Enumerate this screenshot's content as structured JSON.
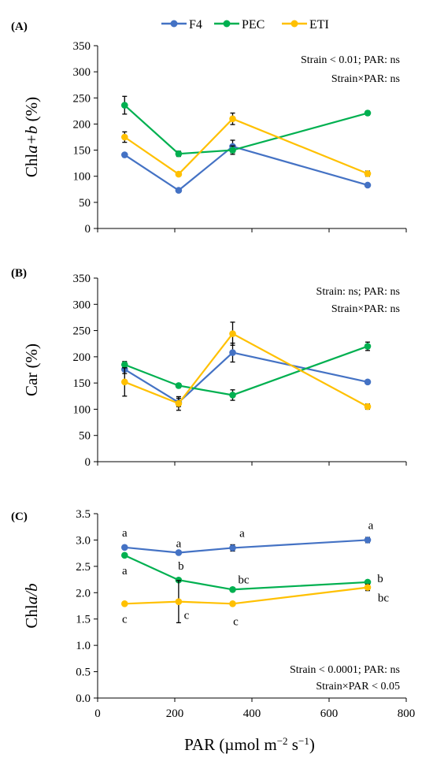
{
  "legend": [
    {
      "name": "F4",
      "color": "#4472C4"
    },
    {
      "name": "PEC",
      "color": "#00B050"
    },
    {
      "name": "ETI",
      "color": "#FFC000"
    }
  ],
  "x_axis_label": "PAR (µmol m−2 s−1)",
  "chart_data": [
    {
      "type": "line",
      "panel": "(A)",
      "ylabel": "Chla+b (%)",
      "xlim": [
        0,
        800
      ],
      "ylim": [
        0,
        350
      ],
      "y_ticks": [
        0,
        50,
        100,
        150,
        200,
        250,
        300,
        350
      ],
      "x_ticks": [
        0,
        200,
        400,
        600,
        800
      ],
      "show_x_tick_labels": false,
      "grid": false,
      "x": [
        70,
        210,
        350,
        700
      ],
      "series": [
        {
          "name": "F4",
          "values": [
            141,
            73,
            157,
            83
          ],
          "errors": [
            0,
            0,
            12,
            0
          ]
        },
        {
          "name": "PEC",
          "values": [
            236,
            143,
            150,
            221
          ],
          "errors": [
            17,
            5,
            8,
            4
          ]
        },
        {
          "name": "ETI",
          "values": [
            175,
            104,
            210,
            105
          ],
          "errors": [
            10,
            3,
            11,
            5
          ]
        }
      ],
      "annotations": [
        "Strain < 0.01; PAR: ns",
        "Strain×PAR: ns"
      ]
    },
    {
      "type": "line",
      "panel": "(B)",
      "ylabel": "Car (%)",
      "xlim": [
        0,
        800
      ],
      "ylim": [
        0,
        350
      ],
      "y_ticks": [
        0,
        50,
        100,
        150,
        200,
        250,
        300,
        350
      ],
      "x_ticks": [
        0,
        200,
        400,
        600,
        800
      ],
      "show_x_tick_labels": false,
      "grid": false,
      "x": [
        70,
        210,
        350,
        700
      ],
      "series": [
        {
          "name": "F4",
          "values": [
            176,
            113,
            208,
            152
          ],
          "errors": [
            8,
            8,
            18,
            0
          ]
        },
        {
          "name": "PEC",
          "values": [
            185,
            145,
            127,
            220
          ],
          "errors": [
            6,
            4,
            10,
            8
          ]
        },
        {
          "name": "ETI",
          "values": [
            152,
            111,
            244,
            105
          ],
          "errors": [
            27,
            13,
            22,
            5
          ]
        }
      ],
      "annotations": [
        "Strain: ns; PAR: ns",
        "Strain×PAR: ns"
      ]
    },
    {
      "type": "line",
      "panel": "(C)",
      "ylabel": "Chla/b",
      "xlim": [
        0,
        800
      ],
      "ylim": [
        0,
        3.5
      ],
      "y_ticks": [
        "0.0",
        "0.5",
        "1.0",
        "1.5",
        "2.0",
        "2.5",
        "3.0",
        "3.5"
      ],
      "x_ticks": [
        0,
        200,
        400,
        600,
        800
      ],
      "show_x_tick_labels": true,
      "grid": false,
      "x": [
        70,
        210,
        350,
        700
      ],
      "series": [
        {
          "name": "F4",
          "values": [
            2.86,
            2.76,
            2.85,
            3.0
          ],
          "errors": [
            0,
            0,
            0.06,
            0.05
          ],
          "letters": [
            "a",
            "a",
            "a",
            "a"
          ]
        },
        {
          "name": "PEC",
          "values": [
            2.71,
            2.24,
            2.06,
            2.2
          ],
          "errors": [
            0,
            0,
            0,
            0
          ],
          "letters": [
            "a",
            "b",
            "bc",
            "b"
          ]
        },
        {
          "name": "ETI",
          "values": [
            1.79,
            1.83,
            1.79,
            2.1
          ],
          "errors": [
            0.03,
            0.4,
            0,
            0.06
          ],
          "letters": [
            "c",
            "c",
            "c",
            "bc"
          ]
        }
      ],
      "annotations": [
        "Strain < 0.0001; PAR: ns",
        "Strain×PAR < 0.05"
      ]
    }
  ]
}
